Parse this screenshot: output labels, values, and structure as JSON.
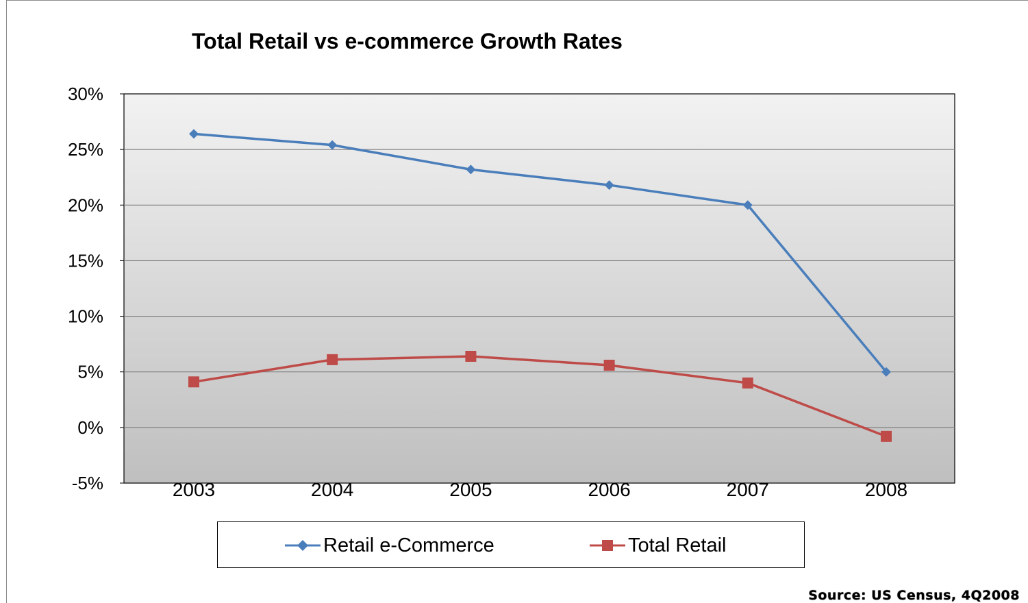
{
  "chart_data": {
    "type": "line",
    "title": "Total Retail vs e-commerce Growth Rates",
    "xlabel": "",
    "ylabel": "",
    "categories": [
      "2003",
      "2004",
      "2005",
      "2006",
      "2007",
      "2008"
    ],
    "y_ticks": [
      "-5%",
      "0%",
      "5%",
      "10%",
      "15%",
      "20%",
      "25%",
      "30%"
    ],
    "ylim": [
      -5,
      30
    ],
    "grid": true,
    "legend_position": "bottom",
    "series": [
      {
        "name": "Retail e-Commerce",
        "color": "#4a7ebb",
        "marker": "diamond",
        "values": [
          26.4,
          25.4,
          23.2,
          21.8,
          20.0,
          5.0
        ]
      },
      {
        "name": "Total Retail",
        "color": "#be4b48",
        "marker": "square",
        "values": [
          4.1,
          6.1,
          6.4,
          5.6,
          4.0,
          -0.8
        ]
      }
    ],
    "annotation": "Source: US Census, 4Q2008"
  }
}
